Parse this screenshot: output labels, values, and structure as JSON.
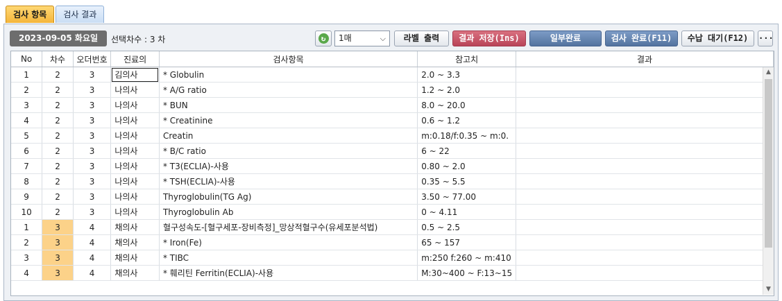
{
  "tabs": [
    {
      "label": "검사 항목",
      "active": true
    },
    {
      "label": "검사 결과",
      "active": false
    }
  ],
  "toolbar": {
    "date": "2023-09-05 화요일",
    "selection_label": "선택차수 : 3 차",
    "count_select": "1매",
    "label_print": "라벨 출력",
    "save_result": "결과 저장(Ins)",
    "partial_done": "일부완료",
    "exam_done": "검사 완료(F11)",
    "payment_wait": "수납 대기(F12)",
    "more": "···"
  },
  "table": {
    "headers": [
      "No",
      "차수",
      "오더번호",
      "진료의",
      "검사항목",
      "참고치",
      "결과"
    ],
    "rows": [
      [
        "1",
        "2",
        "3",
        "김의사",
        "* Globulin",
        "2.0 ~ 3.3",
        ""
      ],
      [
        "2",
        "2",
        "3",
        "나의사",
        "* A/G ratio",
        "1.2 ~ 2.0",
        ""
      ],
      [
        "3",
        "2",
        "3",
        "나의사",
        "* BUN",
        "8.0 ~ 20.0",
        ""
      ],
      [
        "4",
        "2",
        "3",
        "나의사",
        "* Creatinine",
        "0.6 ~ 1.2",
        ""
      ],
      [
        "5",
        "2",
        "3",
        "나의사",
        "Creatin",
        "m:0.18/f:0.35 ~ m:0.",
        ""
      ],
      [
        "6",
        "2",
        "3",
        "나의사",
        "* B/C ratio",
        "6 ~ 22",
        ""
      ],
      [
        "7",
        "2",
        "3",
        "나의사",
        "* T3(ECLIA)-사용",
        "0.80 ~ 2.0",
        ""
      ],
      [
        "8",
        "2",
        "3",
        "나의사",
        "* TSH(ECLIA)-사용",
        "0.35 ~ 5.5",
        ""
      ],
      [
        "9",
        "2",
        "3",
        "나의사",
        "Thyroglobulin(TG Ag)",
        "3.50 ~ 77.00",
        ""
      ],
      [
        "10",
        "2",
        "3",
        "나의사",
        "Thyroglobulin Ab",
        "0 ~ 4.11",
        ""
      ],
      [
        "1",
        "3",
        "4",
        "채의사",
        "혈구성속도-[혈구세포-장비측정]_망상적혈구수(유세포분석법)",
        "0.5 ~ 2.5",
        ""
      ],
      [
        "2",
        "3",
        "4",
        "채의사",
        "* Iron(Fe)",
        "65 ~ 157",
        ""
      ],
      [
        "3",
        "3",
        "4",
        "채의사",
        "* TIBC",
        "m:250 f:260 ~ m:410",
        ""
      ],
      [
        "4",
        "3",
        "4",
        "채의사",
        "* 훼리틴 Ferritin(ECLIA)-사용",
        "M:30~400 ~ F:13~15",
        ""
      ]
    ]
  },
  "colors": {
    "active_tab": "#f4b53a",
    "highlight_cell": "#fcd289",
    "save_button": "#b94458",
    "blue_button": "#53739f"
  },
  "icons": [
    "refresh-icon",
    "chevron-down-icon",
    "scroll-up-icon",
    "scroll-down-icon"
  ]
}
